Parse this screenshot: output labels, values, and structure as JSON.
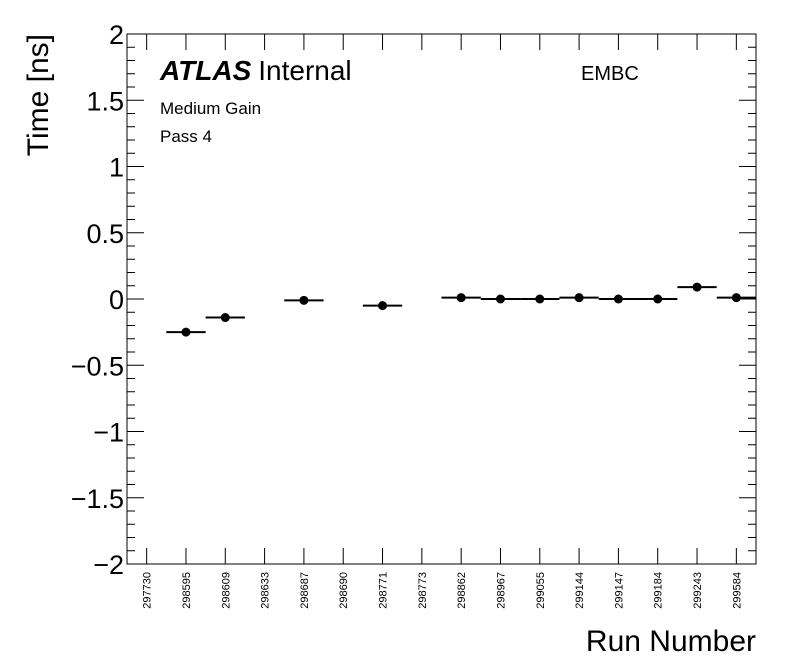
{
  "chart_data": {
    "type": "scatter",
    "title": "",
    "xlabel": "Run Number",
    "ylabel": "Time [ns]",
    "ylim": [
      -2,
      2
    ],
    "grid": false,
    "yticks": [
      2,
      1.5,
      1,
      0.5,
      0,
      -0.5,
      -1,
      -1.5,
      -2
    ],
    "ytick_labels": [
      "2",
      "1.5",
      "1",
      "0.5",
      "0",
      "−0.5",
      "−1",
      "−1.5",
      "−2"
    ],
    "categories": [
      "297730",
      "298595",
      "298609",
      "298633",
      "298687",
      "298690",
      "298771",
      "298773",
      "298862",
      "298967",
      "299055",
      "299144",
      "299147",
      "299184",
      "299243",
      "299584"
    ],
    "values": [
      null,
      -0.25,
      -0.14,
      null,
      -0.01,
      null,
      -0.05,
      null,
      0.01,
      0.0,
      0.0,
      0.01,
      0.0,
      0.0,
      0.09,
      0.01
    ],
    "annotations": {
      "atlas": "ATLAS",
      "internal": "Internal",
      "region": "EMBC",
      "gain": "Medium Gain",
      "pass": "Pass 4"
    }
  }
}
